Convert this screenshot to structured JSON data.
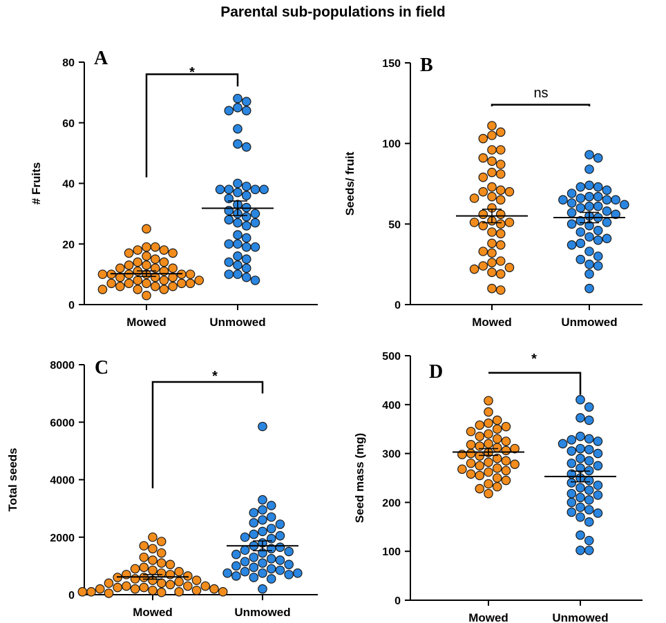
{
  "figure_title": "Parental sub-populations in field",
  "colors": {
    "mowed": "#f28c1c",
    "unmowed": "#2a86e0",
    "stroke": "#1a1a1a"
  },
  "chart_data": [
    {
      "panel": "A",
      "type": "scatter",
      "categories": [
        "Mowed",
        "Unmowed"
      ],
      "ylabel": "# Fruits",
      "ylim": [
        0,
        80
      ],
      "yticks": [
        0,
        20,
        40,
        60,
        80
      ],
      "comparison": "*",
      "series": [
        {
          "name": "Mowed",
          "mean": 10.2,
          "sem": 0.9,
          "values": [
            25,
            19,
            19,
            18,
            18,
            17,
            17,
            16,
            15,
            14,
            14,
            13,
            13,
            12,
            12,
            12,
            11,
            11,
            10,
            10,
            10,
            10,
            10,
            10,
            9,
            9,
            9,
            8,
            8,
            8,
            7,
            7,
            7,
            7,
            7,
            6,
            6,
            6,
            5,
            5,
            5,
            3
          ]
        },
        {
          "name": "Unmowed",
          "mean": 31.8,
          "sem": 2.4,
          "values": [
            68,
            67,
            65,
            64,
            64,
            58,
            53,
            52,
            40,
            39,
            38,
            38,
            38,
            38,
            37,
            36,
            35,
            33,
            32,
            31,
            30,
            30,
            29,
            28,
            27,
            27,
            26,
            23,
            22,
            20,
            20,
            19,
            19,
            16,
            15,
            14,
            13,
            12,
            10,
            10,
            9,
            8
          ]
        }
      ]
    },
    {
      "panel": "B",
      "type": "scatter",
      "categories": [
        "Mowed",
        "Unmowed"
      ],
      "ylabel": "Seeds/ fruit",
      "ylim": [
        0,
        150
      ],
      "yticks": [
        0,
        50,
        100,
        150
      ],
      "comparison": "ns",
      "series": [
        {
          "name": "Mowed",
          "mean": 55,
          "sem": 4.2,
          "values": [
            111,
            107,
            105,
            103,
            96,
            96,
            91,
            89,
            87,
            82,
            81,
            79,
            73,
            71,
            70,
            70,
            67,
            66,
            65,
            60,
            56,
            56,
            52,
            51,
            51,
            50,
            49,
            45,
            44,
            38,
            37,
            33,
            32,
            27,
            26,
            24,
            23,
            22,
            20,
            19,
            10,
            9
          ]
        },
        {
          "name": "Unmowed",
          "mean": 54,
          "sem": 3.2,
          "values": [
            93,
            91,
            84,
            74,
            73,
            73,
            71,
            69,
            67,
            67,
            66,
            65,
            65,
            65,
            63,
            62,
            61,
            61,
            60,
            58,
            57,
            56,
            55,
            54,
            52,
            51,
            50,
            49,
            46,
            45,
            42,
            41,
            40,
            38,
            37,
            33,
            30,
            28,
            25,
            24,
            19,
            10
          ]
        }
      ]
    },
    {
      "panel": "C",
      "type": "scatter",
      "categories": [
        "Mowed",
        "Unmowed"
      ],
      "ylabel": "Total seeds",
      "ylim": [
        0,
        8000
      ],
      "yticks": [
        0,
        2000,
        4000,
        6000,
        8000
      ],
      "comparison": "*",
      "series": [
        {
          "name": "Mowed",
          "mean": 620,
          "sem": 80,
          "values": [
            2000,
            1850,
            1700,
            1600,
            1450,
            1300,
            1200,
            1100,
            1050,
            950,
            900,
            850,
            800,
            750,
            700,
            700,
            650,
            600,
            600,
            550,
            500,
            500,
            450,
            400,
            400,
            350,
            300,
            300,
            300,
            250,
            250,
            200,
            200,
            200,
            150,
            150,
            100,
            100,
            100,
            100,
            80,
            50
          ]
        },
        {
          "name": "Unmowed",
          "mean": 1700,
          "sem": 170,
          "values": [
            5850,
            3300,
            3100,
            2950,
            2850,
            2700,
            2600,
            2500,
            2450,
            2300,
            2200,
            2100,
            2050,
            2000,
            1950,
            1800,
            1700,
            1650,
            1600,
            1550,
            1500,
            1450,
            1400,
            1300,
            1250,
            1200,
            1150,
            1100,
            1050,
            1000,
            950,
            900,
            850,
            800,
            750,
            750,
            750,
            700,
            650,
            600,
            550,
            200
          ]
        }
      ]
    },
    {
      "panel": "D",
      "type": "scatter",
      "categories": [
        "Mowed",
        "Unmowed"
      ],
      "ylabel": "Seed mass (mg)",
      "ylim": [
        0,
        500
      ],
      "yticks": [
        0,
        100,
        200,
        300,
        400,
        500
      ],
      "comparison": "*",
      "series": [
        {
          "name": "Mowed",
          "mean": 303,
          "sem": 7,
          "values": [
            408,
            385,
            368,
            362,
            358,
            355,
            350,
            345,
            340,
            335,
            330,
            325,
            320,
            318,
            315,
            312,
            310,
            306,
            302,
            300,
            298,
            295,
            290,
            285,
            282,
            280,
            278,
            275,
            270,
            268,
            265,
            262,
            258,
            255,
            250,
            245,
            238,
            232,
            228,
            218
          ]
        },
        {
          "name": "Unmowed",
          "mean": 253,
          "sem": 11,
          "values": [
            410,
            395,
            373,
            368,
            335,
            330,
            328,
            325,
            320,
            310,
            308,
            305,
            300,
            290,
            285,
            280,
            275,
            270,
            265,
            258,
            250,
            245,
            240,
            235,
            230,
            225,
            218,
            215,
            210,
            205,
            200,
            190,
            185,
            180,
            178,
            170,
            160,
            133,
            122,
            102,
            102
          ]
        }
      ]
    }
  ]
}
